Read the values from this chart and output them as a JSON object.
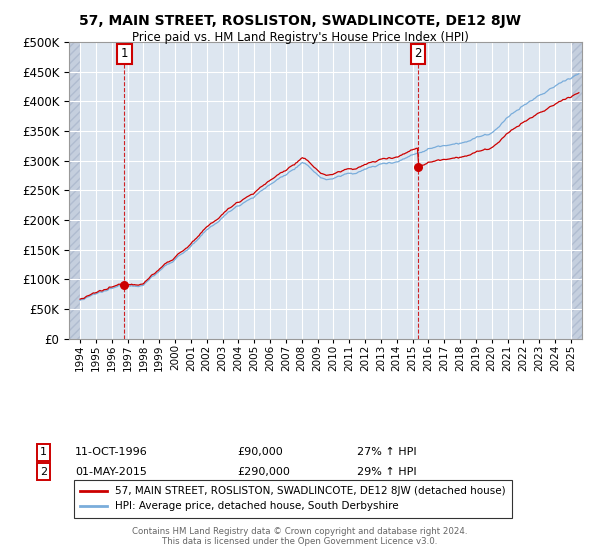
{
  "title": "57, MAIN STREET, ROSLISTON, SWADLINCOTE, DE12 8JW",
  "subtitle": "Price paid vs. HM Land Registry's House Price Index (HPI)",
  "legend_line1": "57, MAIN STREET, ROSLISTON, SWADLINCOTE, DE12 8JW (detached house)",
  "legend_line2": "HPI: Average price, detached house, South Derbyshire",
  "annotation1_label": "1",
  "annotation1_date": "11-OCT-1996",
  "annotation1_price": "£90,000",
  "annotation1_hpi": "27% ↑ HPI",
  "annotation2_label": "2",
  "annotation2_date": "01-MAY-2015",
  "annotation2_price": "£290,000",
  "annotation2_hpi": "29% ↑ HPI",
  "footer": "Contains HM Land Registry data © Crown copyright and database right 2024.\nThis data is licensed under the Open Government Licence v3.0.",
  "ylim": [
    0,
    500000
  ],
  "yticks": [
    0,
    50000,
    100000,
    150000,
    200000,
    250000,
    300000,
    350000,
    400000,
    450000,
    500000
  ],
  "hpi_color": "#7aaddb",
  "price_color": "#cc0000",
  "annotation_color": "#cc0000",
  "bg_color": "#dde6f0",
  "grid_color": "#ffffff",
  "border_color": "#aaaaaa",
  "t1_year": 1996.79,
  "t2_year": 2015.33,
  "price_t1": 90000,
  "price_t2": 290000
}
